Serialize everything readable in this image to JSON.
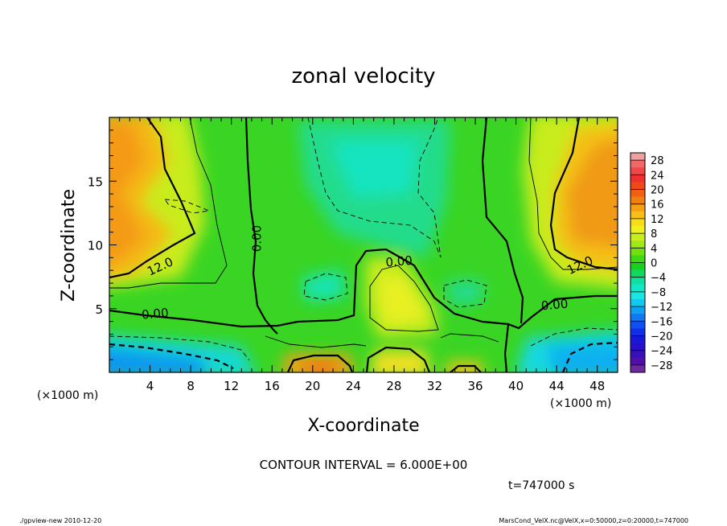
{
  "chart_data": {
    "type": "heatmap",
    "title": "zonal velocity",
    "xlabel": "X-coordinate",
    "ylabel": "Z-coordinate",
    "x_unit": "(×1000 m)",
    "y_unit": "(×1000 m)",
    "xlim": [
      0,
      50
    ],
    "ylim": [
      0,
      20
    ],
    "x_ticks": [
      4,
      8,
      12,
      16,
      20,
      24,
      28,
      32,
      36,
      40,
      44,
      48
    ],
    "y_ticks": [
      5,
      10,
      15
    ],
    "contour_interval_text": "CONTOUR INTERVAL = 6.000E+00",
    "time_text": "t=747000 s",
    "contour_labels": [
      {
        "text": "12.0",
        "x": 5.0,
        "z": 8.3
      },
      {
        "text": "0.00",
        "x": 4.5,
        "z": 4.6
      },
      {
        "text": "0.00",
        "x": 14.5,
        "z": 10.5
      },
      {
        "text": "0.00",
        "x": 28.5,
        "z": 8.7
      },
      {
        "text": "12.0",
        "x": 46.3,
        "z": 8.4
      },
      {
        "text": "0.00",
        "x": 43.8,
        "z": 5.3
      }
    ],
    "colorbar": {
      "ticks": [
        28,
        24,
        20,
        16,
        12,
        8,
        4,
        0,
        -4,
        -8,
        -12,
        -16,
        -20,
        -24,
        -28
      ],
      "levels": [
        {
          "value": 30,
          "color": "#f0a0a0"
        },
        {
          "value": 28,
          "color": "#f06868"
        },
        {
          "value": 26,
          "color": "#f04848"
        },
        {
          "value": 24,
          "color": "#f03030"
        },
        {
          "value": 22,
          "color": "#f04818"
        },
        {
          "value": 20,
          "color": "#f06010"
        },
        {
          "value": 18,
          "color": "#f08010"
        },
        {
          "value": 16,
          "color": "#f5a012"
        },
        {
          "value": 14,
          "color": "#f8c016"
        },
        {
          "value": 12,
          "color": "#f8dc18"
        },
        {
          "value": 10,
          "color": "#eef020"
        },
        {
          "value": 8,
          "color": "#c8ee1c"
        },
        {
          "value": 6,
          "color": "#a0e818"
        },
        {
          "value": 4,
          "color": "#70e010"
        },
        {
          "value": 2,
          "color": "#40d810"
        },
        {
          "value": 0,
          "color": "#18d020"
        },
        {
          "value": -2,
          "color": "#10d860"
        },
        {
          "value": -4,
          "color": "#10e0a0"
        },
        {
          "value": -6,
          "color": "#10e8c8"
        },
        {
          "value": -8,
          "color": "#18e8e0"
        },
        {
          "value": -10,
          "color": "#10c8f0"
        },
        {
          "value": -12,
          "color": "#10a0f0"
        },
        {
          "value": -14,
          "color": "#1078f0"
        },
        {
          "value": -16,
          "color": "#1050f0"
        },
        {
          "value": -18,
          "color": "#1030e8"
        },
        {
          "value": -20,
          "color": "#1818d8"
        },
        {
          "value": -22,
          "color": "#2810c8"
        },
        {
          "value": -24,
          "color": "#3810b8"
        },
        {
          "value": -26,
          "color": "#5010a8"
        },
        {
          "value": -28,
          "color": "#7028a0"
        }
      ]
    }
  },
  "footer": {
    "left": "./gpview-new   2010-12-20",
    "right": "MarsCond_VelX.nc@VelX,x=0:50000,z=0:20000,t=747000"
  }
}
